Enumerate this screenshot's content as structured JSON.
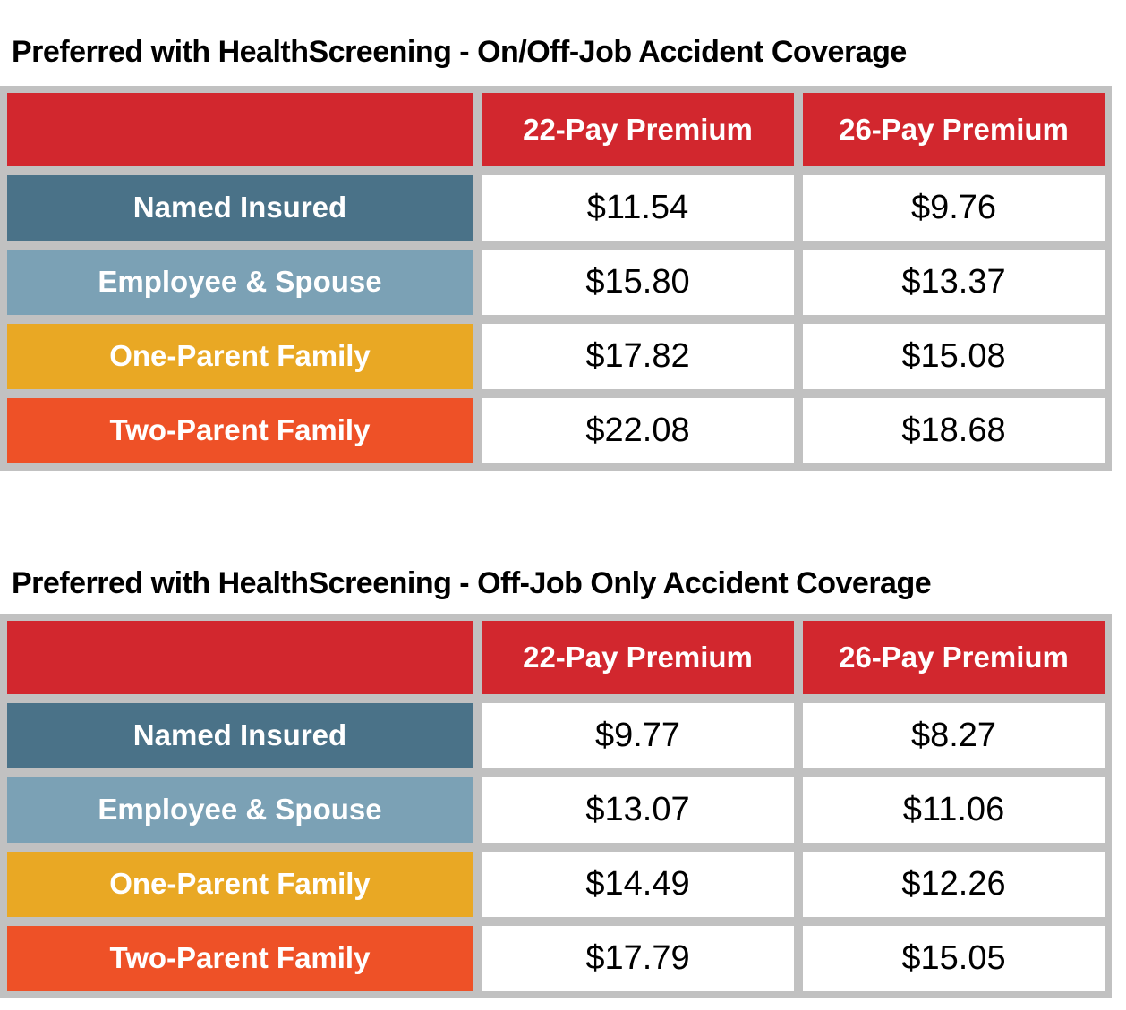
{
  "colors": {
    "header_red": "#d2272e",
    "row_named_insured_blue": "#4a7288",
    "row_employee_spouse_blue": "#7ba1b5",
    "row_one_parent_gold": "#e9a824",
    "row_two_parent_orange": "#ee5127",
    "table_frame_gray": "#c1c1c1",
    "value_cell_white": "#ffffff",
    "header_text": "#ffffff",
    "row_label_text": "#ffffff",
    "value_text": "#000000",
    "title_text": "#000000"
  },
  "tables": [
    {
      "title": "Preferred with HealthScreening - On/Off-Job Accident Coverage",
      "columns": [
        "",
        "22-Pay Premium",
        "26-Pay Premium"
      ],
      "rows": [
        {
          "label": "Named Insured",
          "values": [
            "$11.54",
            "$9.76"
          ]
        },
        {
          "label": "Employee & Spouse",
          "values": [
            "$15.80",
            "$13.37"
          ]
        },
        {
          "label": "One-Parent Family",
          "values": [
            "$17.82",
            "$15.08"
          ]
        },
        {
          "label": "Two-Parent Family",
          "values": [
            "$22.08",
            "$18.68"
          ]
        }
      ]
    },
    {
      "title": "Preferred with HealthScreening - Off-Job Only Accident Coverage",
      "columns": [
        "",
        "22-Pay Premium",
        "26-Pay Premium"
      ],
      "rows": [
        {
          "label": "Named Insured",
          "values": [
            "$9.77",
            "$8.27"
          ]
        },
        {
          "label": "Employee & Spouse",
          "values": [
            "$13.07",
            "$11.06"
          ]
        },
        {
          "label": "One-Parent Family",
          "values": [
            "$14.49",
            "$12.26"
          ]
        },
        {
          "label": "Two-Parent Family",
          "values": [
            "$17.79",
            "$15.05"
          ]
        }
      ]
    }
  ]
}
